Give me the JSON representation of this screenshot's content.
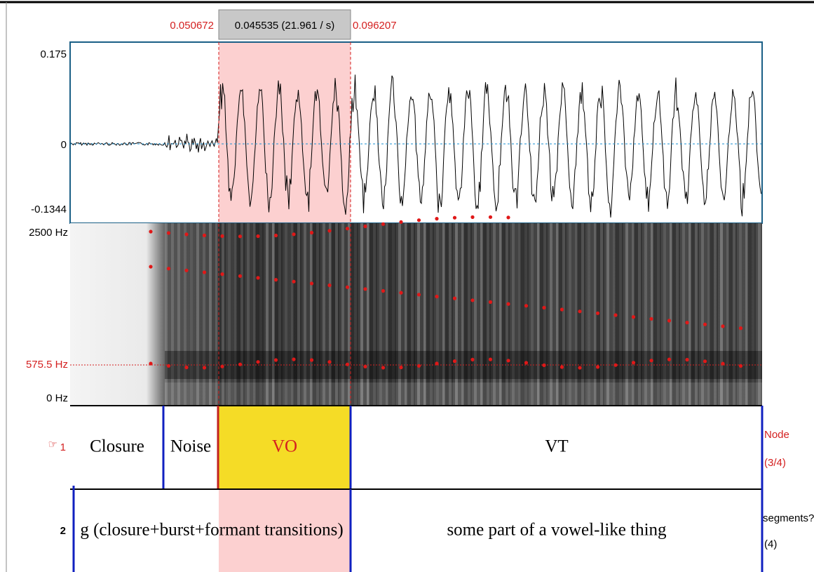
{
  "selection": {
    "start": "0.050672",
    "duration": "0.045535 (21.961 / s)",
    "end": "0.096207"
  },
  "waveform": {
    "max": "0.175",
    "zero": "0",
    "min": "-0.1344"
  },
  "spectrogram": {
    "top": "2500 Hz",
    "cursor": "575.5 Hz",
    "bottom": "0 Hz"
  },
  "tiers": [
    {
      "pointer": "☞",
      "number": "1",
      "intervals": [
        "Closure",
        "Noise",
        "VO",
        "VT"
      ],
      "info": [
        "Node",
        "(3/4)"
      ]
    },
    {
      "number": "2",
      "intervals": [
        "g (closure+burst+formant transitions)",
        "some part of a vowel-like thing"
      ],
      "info": [
        "segments?",
        "(4)"
      ]
    }
  ]
}
